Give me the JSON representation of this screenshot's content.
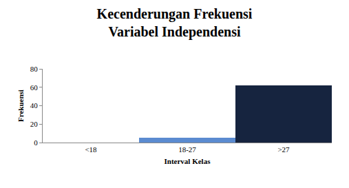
{
  "chart_data": {
    "type": "bar",
    "title": "Kecenderungan Frekuensi\nVariabel Independensi",
    "x_label": "Interval Kelas",
    "y_label": "Frekuensi",
    "categories": [
      "<18",
      "18-27",
      ">27"
    ],
    "values": [
      0,
      5,
      62
    ],
    "colors": [
      "#4f81bd",
      "#5b8bd0",
      "#16243f"
    ],
    "ylim": [
      0,
      80
    ],
    "yticks": [
      0,
      20,
      40,
      60,
      80
    ],
    "grid": false
  }
}
